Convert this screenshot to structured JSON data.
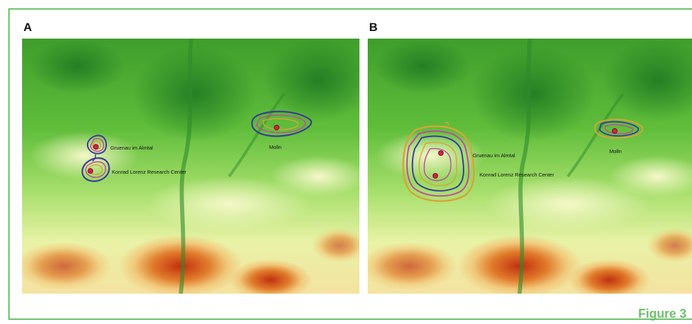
{
  "figure_label": "Figure 3",
  "panels": [
    {
      "letter": "A",
      "places": {
        "gruenau": "Gruenau im Almtal",
        "konrad": "Konrad Lorenz Research Center",
        "molln": "Molln"
      }
    },
    {
      "letter": "B",
      "places": {
        "gruenau": "Gruenau im Almtal",
        "konrad": "Konrad Lorenz Research Center",
        "molln": "Molln"
      }
    }
  ],
  "colors": {
    "frame": "#6cc16a",
    "low_elevation": "#2e9a2e",
    "mid_elevation": "#9bdc62",
    "high_elevation": "#e8f0a0",
    "peak_elevation": "#c8321a",
    "location_marker": "#d4204a"
  }
}
